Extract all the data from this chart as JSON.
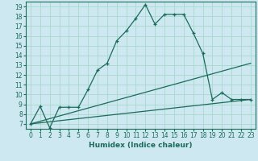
{
  "xlabel": "Humidex (Indice chaleur)",
  "xlim": [
    -0.5,
    23.5
  ],
  "ylim": [
    6.5,
    19.5
  ],
  "xticks": [
    0,
    1,
    2,
    3,
    4,
    5,
    6,
    7,
    8,
    9,
    10,
    11,
    12,
    13,
    14,
    15,
    16,
    17,
    18,
    19,
    20,
    21,
    22,
    23
  ],
  "yticks": [
    7,
    8,
    9,
    10,
    11,
    12,
    13,
    14,
    15,
    16,
    17,
    18,
    19
  ],
  "bg_color": "#cde8f0",
  "line_color": "#1a6b5a",
  "grid_color": "#a8d8cc",
  "curve1_x": [
    0,
    1,
    2,
    3,
    4,
    5,
    6,
    7,
    8,
    9,
    10,
    11,
    12,
    13,
    14,
    15,
    16,
    17,
    18,
    19,
    20,
    21,
    22,
    23
  ],
  "curve1_y": [
    7.0,
    8.8,
    6.6,
    8.7,
    8.7,
    8.7,
    10.5,
    12.5,
    13.2,
    15.5,
    16.5,
    17.8,
    19.2,
    17.2,
    18.2,
    18.2,
    18.2,
    16.3,
    14.2,
    9.5,
    10.2,
    9.5,
    9.5,
    9.5
  ],
  "curve2_x": [
    0,
    23
  ],
  "curve2_y": [
    7.0,
    13.2
  ],
  "curve3_x": [
    0,
    23
  ],
  "curve3_y": [
    7.0,
    9.5
  ],
  "tick_fontsize": 5.5,
  "xlabel_fontsize": 6.5
}
